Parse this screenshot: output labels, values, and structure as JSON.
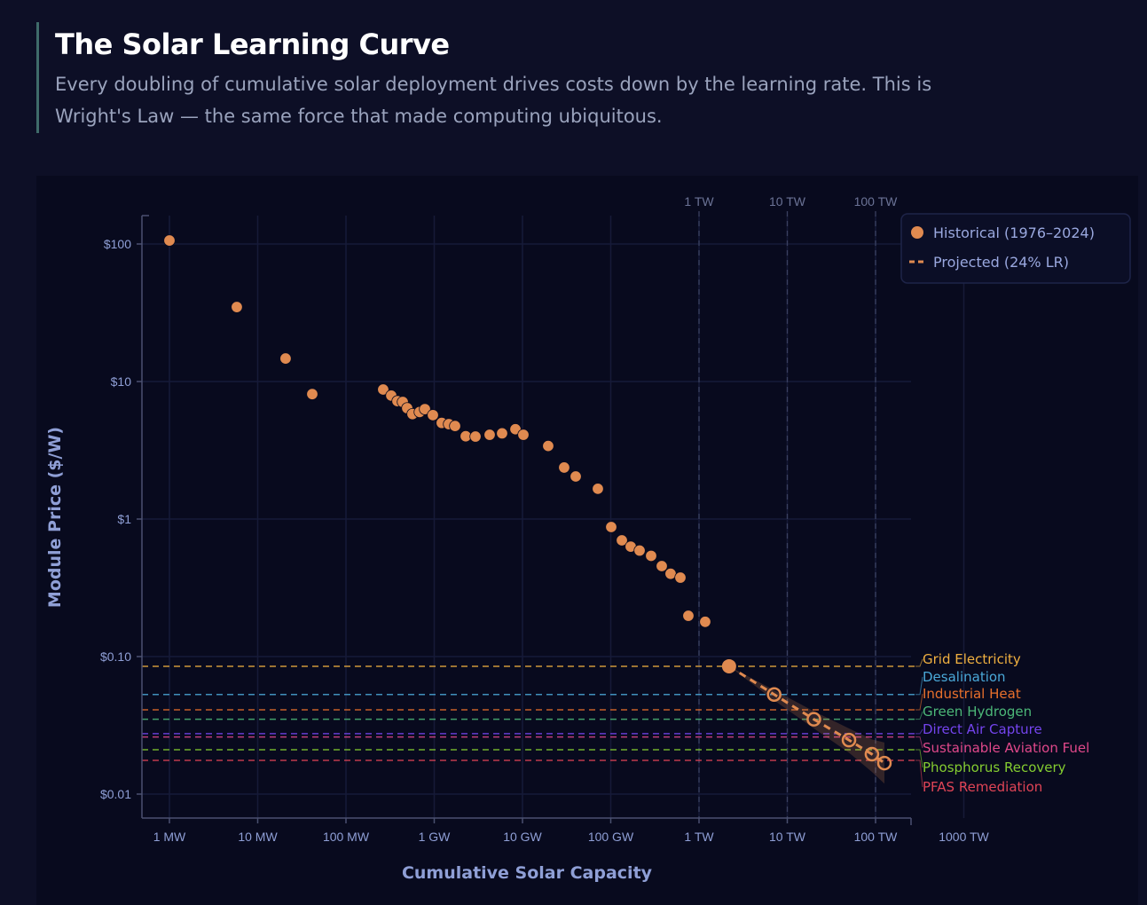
{
  "header": {
    "title": "The Solar Learning Curve",
    "subtitle": "Every doubling of cumulative solar deployment drives costs down by the learning rate. This is Wright's Law — the same force that made computing ubiquitous."
  },
  "chart_data": {
    "type": "scatter",
    "xlabel": "Cumulative Solar Capacity",
    "ylabel": "Module Price ($/W)",
    "x_scale": "log",
    "y_scale": "log",
    "x_unit": "MW",
    "xlim": [
      0.73,
      1000000000
    ],
    "ylim": [
      0.006,
      160
    ],
    "grid": true,
    "legend_position": "top-right",
    "x_ticks": [
      {
        "value": 1,
        "label": "1 MW"
      },
      {
        "value": 10,
        "label": "10 MW"
      },
      {
        "value": 100,
        "label": "100 MW"
      },
      {
        "value": 1000,
        "label": "1 GW"
      },
      {
        "value": 10000,
        "label": "10 GW"
      },
      {
        "value": 100000,
        "label": "100 GW"
      },
      {
        "value": 1000000,
        "label": "1 TW"
      },
      {
        "value": 10000000,
        "label": "10 TW"
      },
      {
        "value": 100000000,
        "label": "100 TW"
      },
      {
        "value": 1000000000,
        "label": "1000 TW"
      }
    ],
    "top_markers": [
      {
        "value": 1000000,
        "label": "1 TW"
      },
      {
        "value": 10000000,
        "label": "10 TW"
      },
      {
        "value": 100000000,
        "label": "100 TW"
      }
    ],
    "y_ticks": [
      {
        "value": 100,
        "label": "$100"
      },
      {
        "value": 10,
        "label": "$10"
      },
      {
        "value": 1,
        "label": "$1"
      },
      {
        "value": 0.1,
        "label": "$0.10"
      },
      {
        "value": 0.01,
        "label": "$0.01"
      }
    ],
    "series": [
      {
        "name": "Historical (1976–2024)",
        "color": "#e08a50",
        "marker": "filled-circle",
        "x": [
          1,
          5.8,
          20.7,
          41.5,
          264,
          326,
          383,
          440,
          494,
          567,
          683,
          784,
          966,
          1216,
          1465,
          1722,
          2274,
          2933,
          4246,
          5872,
          8318,
          10233,
          19550,
          29650,
          40090,
          71450,
          101200,
          133600,
          168300,
          212200,
          286600,
          378300,
          476400,
          615000,
          757000,
          1175000
        ],
        "y": [
          106,
          34.8,
          14.7,
          8.1,
          8.75,
          7.9,
          7.2,
          7.1,
          6.4,
          5.8,
          6.0,
          6.3,
          5.7,
          5.0,
          4.9,
          4.75,
          4.0,
          3.98,
          4.1,
          4.2,
          4.5,
          4.1,
          3.4,
          2.37,
          2.04,
          1.66,
          0.875,
          0.7,
          0.63,
          0.59,
          0.54,
          0.455,
          0.4,
          0.375,
          0.198,
          0.179
        ]
      },
      {
        "name": "Projected (24% LR)",
        "color": "#e08a50",
        "marker": "open-circle",
        "line": "dashed",
        "x": [
          2190000,
          7100000,
          20000000,
          50000000,
          91000000,
          126000000
        ],
        "y": [
          0.085,
          0.053,
          0.035,
          0.0247,
          0.0195,
          0.0168
        ],
        "band_high": [
          0.085,
          0.057,
          0.04,
          0.03,
          0.025,
          0.0237
        ],
        "band_low": [
          0.085,
          0.048,
          0.03,
          0.02,
          0.0145,
          0.0119
        ]
      }
    ],
    "reference_lines": [
      {
        "label": "Grid Electricity",
        "value": 0.085,
        "color": "#f0b040"
      },
      {
        "label": "Desalination",
        "value": 0.053,
        "color": "#4aa8d8"
      },
      {
        "label": "Industrial Heat",
        "value": 0.041,
        "color": "#e8702c"
      },
      {
        "label": "Green Hydrogen",
        "value": 0.035,
        "color": "#4cb878"
      },
      {
        "label": "Direct Air Capture",
        "value": 0.0275,
        "color": "#7444ee"
      },
      {
        "label": "Sustainable Aviation Fuel",
        "value": 0.026,
        "color": "#e0488a"
      },
      {
        "label": "Phosphorus Recovery",
        "value": 0.021,
        "color": "#84cc30"
      },
      {
        "label": "PFAS Remediation",
        "value": 0.0176,
        "color": "#e04456"
      }
    ]
  }
}
